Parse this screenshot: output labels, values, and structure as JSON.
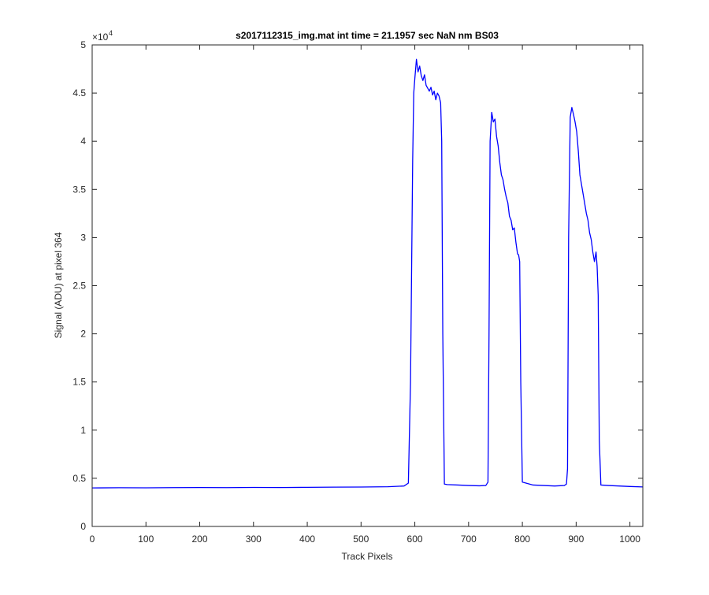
{
  "chart_data": {
    "type": "line",
    "title": "s2017112315_img.mat int time = 21.1957 sec  NaN nm BS03",
    "xlabel": "Track Pixels",
    "ylabel": "Signal (ADU) at pixel 364",
    "xlim": [
      0,
      1024
    ],
    "ylim": [
      0,
      50000
    ],
    "xticks": [
      0,
      100,
      200,
      300,
      400,
      500,
      600,
      700,
      800,
      900,
      1000
    ],
    "xtick_labels": [
      "0",
      "100",
      "200",
      "300",
      "400",
      "500",
      "600",
      "700",
      "800",
      "900",
      "1000"
    ],
    "yticks": [
      0,
      5000,
      10000,
      15000,
      20000,
      25000,
      30000,
      35000,
      40000,
      45000,
      50000
    ],
    "ytick_labels": [
      "0",
      "0.5",
      "1",
      "1.5",
      "2",
      "2.5",
      "3",
      "3.5",
      "4",
      "4.5",
      "5"
    ],
    "y_exponent_label": "×10",
    "y_exponent_power": "4",
    "grid": false,
    "line_color": "#0000ff",
    "series": [
      {
        "x": [
          0,
          50,
          100,
          150,
          200,
          250,
          300,
          350,
          400,
          450,
          500,
          550,
          580,
          588,
          592,
          596,
          598,
          600,
          603,
          606,
          609,
          612,
          615,
          618,
          621,
          624,
          627,
          630,
          633,
          636,
          639,
          642,
          645,
          648,
          650,
          652,
          655,
          660,
          680,
          700,
          720,
          732,
          736,
          738,
          740,
          743,
          746,
          749,
          752,
          755,
          758,
          761,
          764,
          767,
          770,
          773,
          776,
          779,
          782,
          785,
          788,
          791,
          793,
          795,
          797,
          800,
          820,
          840,
          860,
          878,
          882,
          884,
          886,
          889,
          892,
          895,
          898,
          901,
          904,
          907,
          910,
          913,
          916,
          919,
          922,
          925,
          928,
          931,
          934,
          937,
          939,
          941,
          943,
          946,
          960,
          980,
          1000,
          1024
        ],
        "y": [
          4000,
          4020,
          4010,
          4030,
          4040,
          4030,
          4050,
          4040,
          4060,
          4080,
          4090,
          4120,
          4200,
          4500,
          15000,
          38000,
          45000,
          46500,
          48500,
          47200,
          47800,
          46800,
          46300,
          46900,
          45800,
          45500,
          45200,
          45600,
          44800,
          45200,
          44300,
          45000,
          44700,
          44000,
          40000,
          20000,
          4400,
          4350,
          4300,
          4250,
          4220,
          4250,
          4600,
          20000,
          40000,
          43000,
          42000,
          42300,
          40500,
          39500,
          37800,
          36500,
          36000,
          35000,
          34200,
          33600,
          32200,
          31800,
          30800,
          31000,
          29500,
          28300,
          28200,
          27500,
          15000,
          4600,
          4300,
          4250,
          4200,
          4250,
          4400,
          6000,
          30000,
          42500,
          43500,
          42800,
          42000,
          41000,
          39000,
          36500,
          35500,
          34500,
          33500,
          32500,
          31800,
          30500,
          29800,
          28500,
          27500,
          28500,
          27000,
          24000,
          9000,
          4300,
          4250,
          4200,
          4150,
          4100
        ]
      }
    ]
  }
}
